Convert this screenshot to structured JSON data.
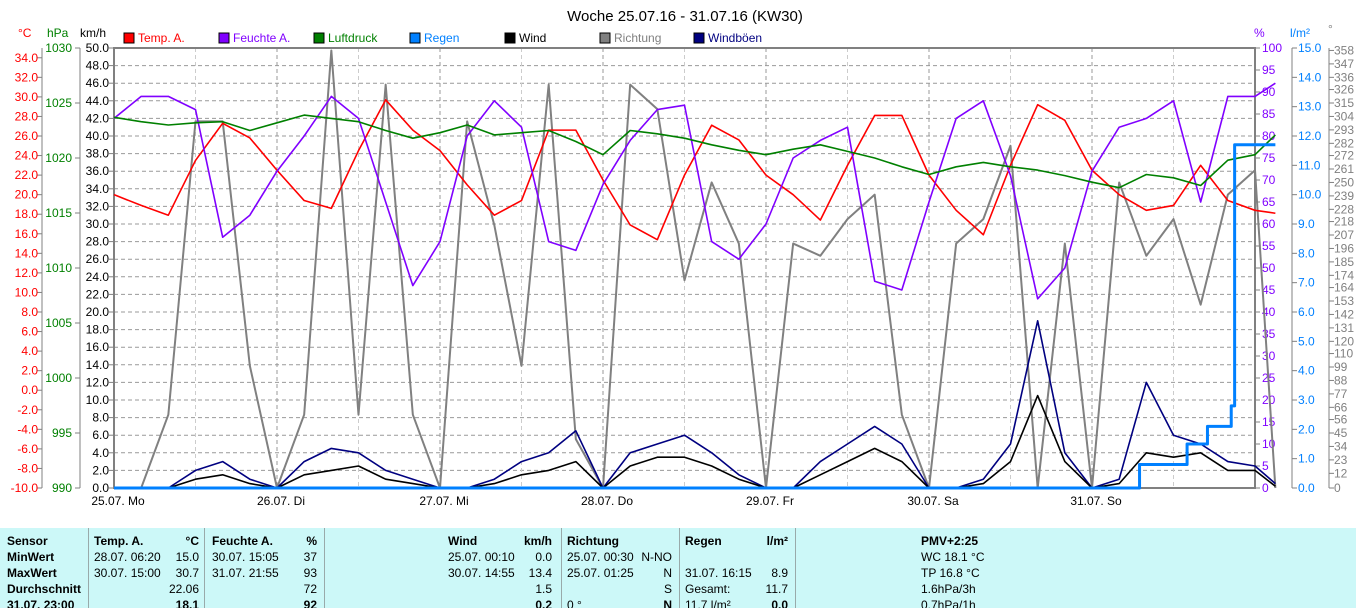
{
  "title": "Woche 25.07.16 - 31.07.16 (KW30)",
  "units": {
    "temp": "°C",
    "pressure": "hPa",
    "wind": "km/h",
    "humidity": "%",
    "rain": "l/m²",
    "direction": "°"
  },
  "colors": {
    "temp": "#ff0000",
    "humidity": "#8000ff",
    "pressure": "#008000",
    "rain": "#0080ff",
    "wind": "#000000",
    "direction": "#808080",
    "gusts": "#000080"
  },
  "legend": [
    {
      "key": "temp",
      "label": "Temp. A."
    },
    {
      "key": "humidity",
      "label": "Feuchte A."
    },
    {
      "key": "pressure",
      "label": "Luftdruck"
    },
    {
      "key": "rain",
      "label": "Regen"
    },
    {
      "key": "wind",
      "label": "Wind"
    },
    {
      "key": "direction",
      "label": "Richtung"
    },
    {
      "key": "gusts",
      "label": "Windböen"
    }
  ],
  "chart_data": {
    "type": "line",
    "title": "Woche 25.07.16 - 31.07.16 (KW30)",
    "x_unit": "hours since 25.07. 00:00",
    "xlim": [
      0,
      168
    ],
    "day_labels": [
      "25.07. Mo",
      "26.07. Di",
      "27.07. Mi",
      "28.07. Do",
      "29.07. Fr",
      "30.07. Sa",
      "31.07. So"
    ],
    "axes": {
      "temp": {
        "range": [
          -10,
          35
        ],
        "ticks": [
          -10,
          -8,
          -6,
          -4,
          -2,
          0,
          2,
          4,
          6,
          8,
          10,
          12,
          14,
          16,
          18,
          20,
          22,
          24,
          26,
          28,
          30,
          32,
          34
        ],
        "decimals": 1
      },
      "pressure": {
        "range": [
          990,
          1030
        ],
        "ticks": [
          990,
          995,
          1000,
          1005,
          1010,
          1015,
          1020,
          1025,
          1030
        ],
        "decimals": 0
      },
      "wind": {
        "range": [
          0,
          50
        ],
        "ticks": [
          0,
          2,
          4,
          6,
          8,
          10,
          12,
          14,
          16,
          18,
          20,
          22,
          24,
          26,
          28,
          30,
          32,
          34,
          36,
          38,
          40,
          42,
          44,
          46,
          48,
          50
        ],
        "decimals": 1
      },
      "humidity": {
        "range": [
          0,
          100
        ],
        "ticks": [
          0,
          5,
          10,
          15,
          20,
          25,
          30,
          35,
          40,
          45,
          50,
          55,
          60,
          65,
          70,
          75,
          80,
          85,
          90,
          95,
          100
        ],
        "decimals": 0
      },
      "rain": {
        "range": [
          0,
          15
        ],
        "ticks": [
          0,
          1,
          2,
          3,
          4,
          5,
          6,
          7,
          8,
          9,
          10,
          11,
          12,
          13,
          14,
          15
        ],
        "decimals": 1
      },
      "direction": {
        "range": [
          0,
          360
        ],
        "ticks": [
          0,
          12,
          23,
          34,
          45,
          56,
          66,
          77,
          88,
          99,
          110,
          120,
          131,
          142,
          153,
          164,
          174,
          185,
          196,
          207,
          218,
          228,
          239,
          250,
          261,
          272,
          282,
          293,
          304,
          315,
          326,
          336,
          347,
          358
        ],
        "decimals": 0
      }
    },
    "hours": [
      0,
      4,
      8,
      12,
      16,
      20,
      24,
      28,
      32,
      36,
      40,
      44,
      48,
      52,
      56,
      60,
      64,
      68,
      72,
      76,
      80,
      84,
      88,
      92,
      96,
      100,
      104,
      108,
      112,
      116,
      120,
      124,
      128,
      132,
      136,
      140,
      144,
      148,
      152,
      156,
      160,
      164,
      168,
      171
    ],
    "series": [
      {
        "key": "direction",
        "name": "Richtung",
        "axis": "direction",
        "values": [
          0,
          0,
          60,
          300,
          300,
          100,
          0,
          60,
          358,
          60,
          330,
          60,
          0,
          300,
          215,
          100,
          330,
          40,
          0,
          330,
          310,
          170,
          250,
          200,
          0,
          200,
          190,
          220,
          240,
          60,
          0,
          200,
          220,
          280,
          0,
          200,
          0,
          250,
          190,
          220,
          150,
          240,
          260,
          0
        ]
      },
      {
        "key": "temp",
        "name": "Temp. A.",
        "axis": "temp",
        "values": [
          20.0,
          18.9,
          17.9,
          23.5,
          27.3,
          25.8,
          22.5,
          19.4,
          18.6,
          24.5,
          29.7,
          26.6,
          24.5,
          21.0,
          17.9,
          19.4,
          26.6,
          26.6,
          21.5,
          16.9,
          15.4,
          22.0,
          27.1,
          25.6,
          22.0,
          20.0,
          17.4,
          23.0,
          28.1,
          28.1,
          22.0,
          18.4,
          15.9,
          23.0,
          29.2,
          27.6,
          22.5,
          20.0,
          18.4,
          18.9,
          23.0,
          19.4,
          18.4,
          18.1
        ]
      },
      {
        "key": "humidity",
        "name": "Feuchte A.",
        "axis": "humidity",
        "values": [
          84,
          89,
          89,
          86,
          57,
          62,
          72,
          80,
          89,
          84,
          65,
          46,
          56,
          80,
          88,
          82,
          56,
          54,
          69,
          79,
          86,
          87,
          56,
          52,
          60,
          75,
          79,
          82,
          47,
          45,
          65,
          84,
          88,
          71,
          43,
          50,
          72,
          82,
          84,
          88,
          65,
          89,
          89,
          92
        ]
      },
      {
        "key": "pressure",
        "name": "Luftdruck",
        "axis": "pressure",
        "values": [
          1023.7,
          1023.3,
          1023,
          1023.2,
          1023.3,
          1022.5,
          1023.2,
          1023.9,
          1023.6,
          1023.3,
          1022.5,
          1021.8,
          1022.3,
          1023,
          1022.1,
          1022.3,
          1022.5,
          1021.5,
          1020.3,
          1022.5,
          1022.2,
          1021.8,
          1021.2,
          1020.7,
          1020.3,
          1020.8,
          1021.2,
          1020.6,
          1020,
          1019.2,
          1018.5,
          1019.2,
          1019.6,
          1019.2,
          1018.9,
          1018.4,
          1017.8,
          1017.3,
          1018.5,
          1018.2,
          1017.5,
          1019.8,
          1020.3,
          1022.1
        ]
      },
      {
        "key": "gusts",
        "name": "Windböen",
        "axis": "wind",
        "values": [
          0,
          0,
          0,
          2,
          3,
          1,
          0,
          3,
          4.5,
          4,
          2,
          1,
          0,
          0,
          1,
          3,
          4,
          6.5,
          0,
          4,
          5,
          6,
          4,
          1.5,
          0,
          0,
          3,
          5,
          7,
          5,
          0,
          0,
          1,
          5,
          19,
          4,
          0,
          1,
          12,
          6,
          5,
          3,
          2.5,
          0.5
        ]
      },
      {
        "key": "wind",
        "name": "Wind",
        "axis": "wind",
        "values": [
          0,
          0,
          0,
          1,
          1.5,
          0.5,
          0,
          1.5,
          2,
          2.5,
          1,
          0.5,
          0,
          0,
          0.5,
          1.5,
          2,
          3,
          0,
          2.5,
          3.5,
          3.5,
          2.5,
          1,
          0,
          0,
          1.5,
          3,
          4.5,
          3,
          0,
          0,
          0.5,
          3,
          10.5,
          3,
          0,
          0.5,
          4,
          3.5,
          4,
          2,
          2,
          0.2
        ]
      },
      {
        "key": "rain",
        "name": "Regen",
        "axis": "rain",
        "step": true,
        "points": [
          [
            0,
            0
          ],
          [
            150,
            0
          ],
          [
            151,
            0.8
          ],
          [
            157,
            0.8
          ],
          [
            158,
            1.5
          ],
          [
            161,
            2.1
          ],
          [
            164,
            2.1
          ],
          [
            164.5,
            2.8
          ],
          [
            165,
            11.7
          ],
          [
            171,
            11.7
          ]
        ]
      }
    ]
  },
  "table": {
    "headers": {
      "sensor": "Sensor",
      "temp": "Temp. A.",
      "temp_unit": "°C",
      "hum": "Feuchte A.",
      "hum_unit": "%",
      "wind": "Wind",
      "wind_unit": "km/h",
      "dir": "Richtung",
      "rain": "Regen",
      "rain_unit": "l/m²",
      "pmv": "PMV+2:25"
    },
    "rows": [
      {
        "label": "MinWert",
        "temp_t": "28.07.  06:20",
        "temp_v": "15.0",
        "hum_t": "30.07.  15:05",
        "hum_v": "37",
        "wind_t": "25.07.  00:10",
        "wind_v": "0.0",
        "dir_t": "25.07.  00:30",
        "dir_v": "N-NO",
        "rain_t": "",
        "rain_v": "",
        "extra": "WC 18.1 °C"
      },
      {
        "label": "MaxWert",
        "temp_t": "30.07.  15:00",
        "temp_v": "30.7",
        "hum_t": "31.07.  21:55",
        "hum_v": "93",
        "wind_t": "30.07.  14:55",
        "wind_v": "13.4",
        "dir_t": "25.07.  01:25",
        "dir_v": "N",
        "rain_t": "31.07.  16:15",
        "rain_v": "8.9",
        "extra": "TP 16.8 °C"
      },
      {
        "label": "Durchschnitt",
        "temp_t": "",
        "temp_v": "22.06",
        "hum_t": "",
        "hum_v": "72",
        "wind_t": "",
        "wind_v": "1.5",
        "dir_t": "",
        "dir_v": "S",
        "rain_t": "Gesamt:",
        "rain_v": "11.7",
        "extra": "1.6hPa/3h"
      },
      {
        "label": "31.07. 23:00",
        "temp_t": "",
        "temp_v": "18.1",
        "hum_t": "",
        "hum_v": "92",
        "wind_t": "",
        "wind_v": "0.2",
        "dir_t": "0 °",
        "dir_v": "N",
        "rain_t": "11.7 l/m²",
        "rain_v": "0.0",
        "extra": "0.7hPa/1h"
      }
    ]
  }
}
